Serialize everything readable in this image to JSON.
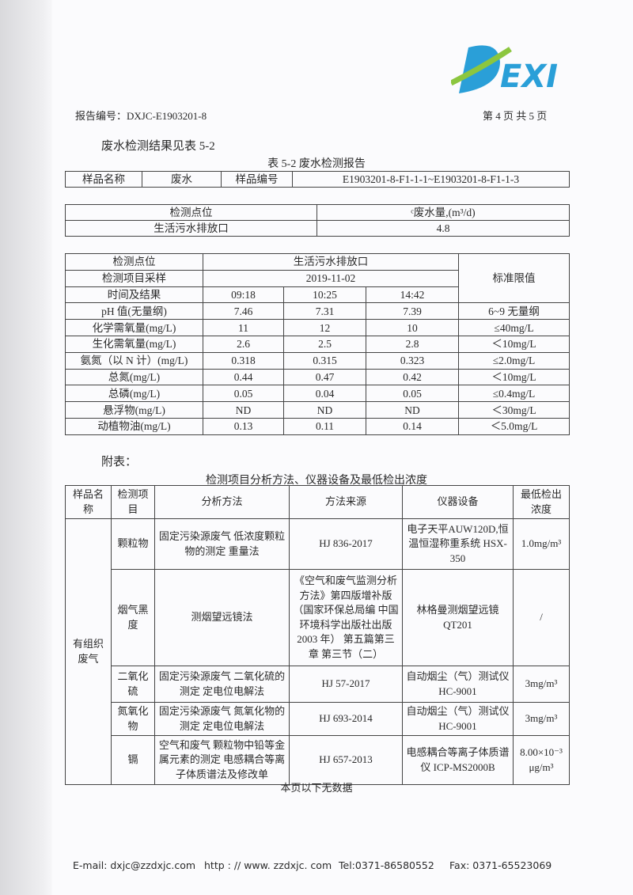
{
  "logo_text": "DEXI",
  "header": {
    "report_no": "报告编号：DXJC-E1903201-8",
    "page": "第 4 页 共 5 页"
  },
  "intro": "废水检测结果见表 5-2",
  "table_caption": "表 5-2  废水检测报告",
  "sample_table": {
    "name_label": "样品名称",
    "name_value": "废水",
    "no_label": "样品编号",
    "no_value": "E1903201-8-F1-1-1~E1903201-8-F1-1-3"
  },
  "volume_table": {
    "point_label": "检测点位",
    "volume_label": "ᶜ废水量,(m³/d)",
    "point": "生活污水排放口",
    "volume": "4.8"
  },
  "result_table": {
    "point_label": "检测点位",
    "point": "生活污水排放口",
    "item_label": "检测项目采样",
    "date": "2019-11-02",
    "time_label": "时间及结果",
    "times": [
      "09:18",
      "10:25",
      "14:42"
    ],
    "limit_label": "标准限值",
    "rows": [
      {
        "item": "pH 值(无量纲)",
        "v": [
          "7.46",
          "7.31",
          "7.39"
        ],
        "limit": "6~9 无量纲"
      },
      {
        "item": "化学需氧量(mg/L)",
        "v": [
          "11",
          "12",
          "10"
        ],
        "limit": "≤40mg/L"
      },
      {
        "item": "生化需氧量(mg/L)",
        "v": [
          "2.6",
          "2.5",
          "2.8"
        ],
        "limit": "＜10mg/L"
      },
      {
        "item": "氨氮（以 N 计）(mg/L)",
        "v": [
          "0.318",
          "0.315",
          "0.323"
        ],
        "limit": "≤2.0mg/L"
      },
      {
        "item": "总氮(mg/L)",
        "v": [
          "0.44",
          "0.47",
          "0.42"
        ],
        "limit": "＜10mg/L"
      },
      {
        "item": "总磷(mg/L)",
        "v": [
          "0.05",
          "0.04",
          "0.05"
        ],
        "limit": "≤0.4mg/L"
      },
      {
        "item": "悬浮物(mg/L)",
        "v": [
          "ND",
          "ND",
          "ND"
        ],
        "limit": "＜30mg/L"
      },
      {
        "item": "动植物油(mg/L)",
        "v": [
          "0.13",
          "0.11",
          "0.14"
        ],
        "limit": "＜5.0mg/L"
      }
    ]
  },
  "appendix_label": "附表：",
  "method_caption": "检测项目分析方法、仪器设备及最低检出浓度",
  "method_table": {
    "headers": [
      "样品名称",
      "检测项目",
      "分析方法",
      "方法来源",
      "仪器设备",
      "最低检出浓度"
    ],
    "sample": "有组织废气",
    "rows": [
      {
        "item": "颗粒物",
        "method": "固定污染源废气 低浓度颗粒物的测定 重量法",
        "source": "HJ 836-2017",
        "instrument": "电子天平AUW120D,恒温恒湿称重系统 HSX-350",
        "limit": "1.0mg/m³"
      },
      {
        "item": "烟气黑度",
        "method": "测烟望远镜法",
        "source": "《空气和废气监测分析方法》第四版增补版（国家环保总局编 中国环境科学出版社出版 2003 年） 第五篇第三章 第三节（二）",
        "instrument": "林格曼测烟望远镜QT201",
        "limit": "/"
      },
      {
        "item": "二氧化硫",
        "method": "固定污染源废气 二氧化硫的测定 定电位电解法",
        "source": "HJ 57-2017",
        "instrument": "自动烟尘（气）测试仪 HC-9001",
        "limit": "3mg/m³"
      },
      {
        "item": "氮氧化物",
        "method": "固定污染源废气 氮氧化物的测定 定电位电解法",
        "source": "HJ 693-2014",
        "instrument": "自动烟尘（气）测试仪 HC-9001",
        "limit": "3mg/m³"
      },
      {
        "item": "镉",
        "method": "空气和废气 颗粒物中铅等金属元素的测定 电感耦合等离子体质谱法及修改单",
        "source": "HJ 657-2013",
        "instrument": "电感耦合等离子体质谱仪 ICP-MS2000B",
        "limit": "8.00×10⁻³ μg/m³"
      }
    ]
  },
  "no_data": "本页以下无数据",
  "footer": {
    "email": "E-mail: dxjc@zzdxjc.com",
    "web": "http : // www. zzdxjc. com",
    "tel": "Tel:0371-86580552",
    "fax": "Fax:  0371-65523069"
  },
  "colors": {
    "logo_blue": "#2a9fd8",
    "logo_green": "#8cc63f"
  }
}
